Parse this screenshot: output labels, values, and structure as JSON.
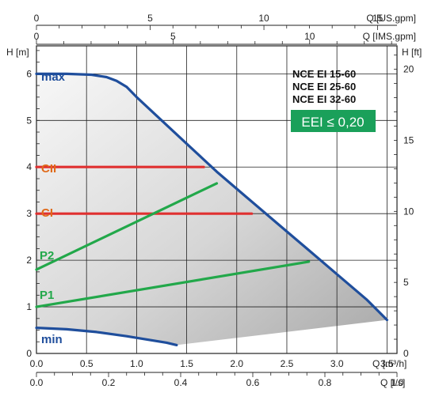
{
  "chart_data": {
    "type": "line",
    "y_left": {
      "label": "H [m]",
      "ticks": [
        "0",
        "1",
        "2",
        "3",
        "4",
        "5",
        "6"
      ],
      "lim": [
        0,
        6.6
      ]
    },
    "y_right": {
      "label": "H [ft]",
      "ticks": [
        "0",
        "5",
        "10",
        "15",
        "20"
      ],
      "lim": [
        0,
        21.65
      ]
    },
    "x_bottom": {
      "label": "Q [m³/h]",
      "ticks": [
        "0.0",
        "0.5",
        "1.0",
        "1.5",
        "2.0",
        "2.5",
        "3.0",
        "3.5"
      ],
      "lim": [
        0,
        3.6
      ]
    },
    "x_bottom2": {
      "label": "Q [l/s]",
      "ticks": [
        "0.0",
        "0.2",
        "0.4",
        "0.6",
        "0.8",
        "1.0"
      ],
      "lim": [
        0,
        1.0
      ]
    },
    "x_top1": {
      "label": "Q [IMS.gpm]",
      "ticks": [
        "0",
        "5",
        "10"
      ]
    },
    "x_top2": {
      "label": "Q [US.gpm]",
      "ticks": [
        "0",
        "5",
        "10",
        "15"
      ]
    },
    "models": [
      "NCE EI 15-60",
      "NCE EI 25-60",
      "NCE EI 32-60"
    ],
    "eei_badge": "EEI ≤ 0,20",
    "colors": {
      "curve": "#1f4e9c",
      "constant": "#e03030",
      "proportional": "#22a84a",
      "badge": "#1aa05a",
      "label_c": "#e06a1a",
      "grid": "#222222"
    },
    "series": [
      {
        "name": "max",
        "color": "#1f4e9c",
        "x": [
          0,
          0.3,
          0.55,
          0.7,
          0.8,
          0.9,
          1.0,
          1.2,
          1.5,
          1.8,
          2.1,
          2.4,
          2.7,
          3.0,
          3.3,
          3.5
        ],
        "y": [
          6.0,
          6.0,
          5.98,
          5.93,
          5.85,
          5.72,
          5.5,
          5.1,
          4.5,
          3.9,
          3.35,
          2.8,
          2.25,
          1.7,
          1.15,
          0.72
        ]
      },
      {
        "name": "min",
        "color": "#1f4e9c",
        "x": [
          0,
          0.3,
          0.6,
          0.9,
          1.1,
          1.3,
          1.4
        ],
        "y": [
          0.55,
          0.52,
          0.46,
          0.37,
          0.3,
          0.23,
          0.18
        ]
      },
      {
        "name": "CII",
        "color": "#e03030",
        "x": [
          0,
          1.67
        ],
        "y": [
          4.0,
          4.0
        ]
      },
      {
        "name": "CI",
        "color": "#e03030",
        "x": [
          0,
          2.15
        ],
        "y": [
          3.0,
          3.0
        ]
      },
      {
        "name": "P2",
        "color": "#22a84a",
        "x": [
          0,
          1.8
        ],
        "y": [
          1.8,
          3.65
        ]
      },
      {
        "name": "P1",
        "color": "#22a84a",
        "x": [
          0,
          2.72
        ],
        "y": [
          1.0,
          1.97
        ]
      }
    ],
    "shaded_area": "region between max and min curves",
    "grid": true
  }
}
